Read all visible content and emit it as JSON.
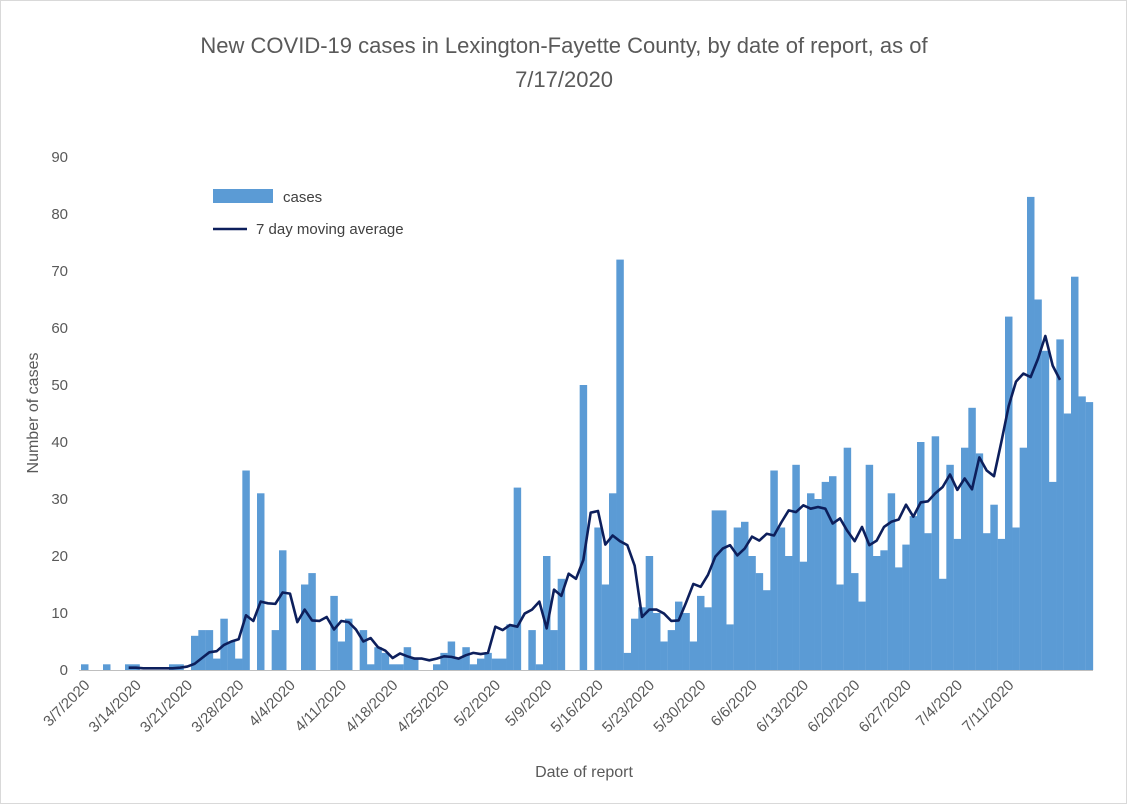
{
  "colors": {
    "bar": "#5b9bd5",
    "line": "#0d1f5c",
    "axis": "#bfbfbf",
    "text": "#595959"
  },
  "chart_data": {
    "type": "bar",
    "title_line1": "New COVID-19 cases in Lexington-Fayette County, by date of report, as of",
    "title_line2": "7/17/2020",
    "xlabel": "Date of report",
    "ylabel": "Number of cases",
    "ylim": [
      0,
      90
    ],
    "y_ticks": [
      "0",
      "10",
      "20",
      "30",
      "40",
      "50",
      "60",
      "70",
      "80",
      "90"
    ],
    "x_tick_labels": [
      "3/7/2020",
      "3/14/2020",
      "3/21/2020",
      "3/28/2020",
      "4/4/2020",
      "4/11/2020",
      "4/18/2020",
      "4/25/2020",
      "5/2/2020",
      "5/9/2020",
      "5/16/2020",
      "5/23/2020",
      "5/30/2020",
      "6/6/2020",
      "6/13/2020",
      "6/20/2020",
      "6/27/2020",
      "7/4/2020",
      "7/11/2020"
    ],
    "grid": false,
    "legend_position": "top-left",
    "x_start_date": "3/7/2020",
    "x_end_date": "7/17/2020",
    "series": [
      {
        "name": "cases",
        "kind": "bar",
        "values": [
          1,
          0,
          0,
          1,
          0,
          0,
          1,
          1,
          0,
          0,
          0,
          0,
          1,
          1,
          0,
          6,
          7,
          7,
          2,
          9,
          5,
          2,
          35,
          0,
          31,
          0,
          7,
          21,
          0,
          0,
          15,
          17,
          0,
          0,
          13,
          5,
          9,
          0,
          7,
          1,
          4,
          3,
          1,
          1,
          4,
          2,
          0,
          0,
          1,
          3,
          5,
          2,
          4,
          1,
          2,
          3,
          2,
          2,
          8,
          32,
          0,
          7,
          1,
          20,
          7,
          16,
          0,
          0,
          50,
          0,
          25,
          15,
          31,
          72,
          3,
          9,
          11,
          20,
          10,
          5,
          7,
          12,
          10,
          5,
          13,
          11,
          28,
          28,
          8,
          25,
          26,
          20,
          17,
          14,
          35,
          25,
          20,
          36,
          19,
          31,
          30,
          33,
          34,
          15,
          39,
          17,
          12,
          36,
          20,
          21,
          31,
          18,
          22,
          27,
          40,
          24,
          41,
          16,
          36,
          23,
          39,
          46,
          38,
          24,
          29,
          23,
          62,
          25,
          39,
          83,
          65,
          56,
          33,
          58,
          45,
          69,
          48,
          47
        ]
      },
      {
        "name": "7 day moving average",
        "kind": "line",
        "start_index": 6,
        "values": [
          0.4,
          0.4,
          0.3,
          0.3,
          0.3,
          0.3,
          0.3,
          0.4,
          0.6,
          1.1,
          2.1,
          3.1,
          3.3,
          4.4,
          5.0,
          5.4,
          9.6,
          8.6,
          12.0,
          11.7,
          11.6,
          13.6,
          13.4,
          8.4,
          10.6,
          8.7,
          8.6,
          9.3,
          7.1,
          8.6,
          8.4,
          7.1,
          5.0,
          5.6,
          4.0,
          3.4,
          2.1,
          2.9,
          2.4,
          2.0,
          2.0,
          1.7,
          2.0,
          2.4,
          2.3,
          2.0,
          2.6,
          3.0,
          2.8,
          3.0,
          7.6,
          7.0,
          7.9,
          7.6,
          9.9,
          10.6,
          12.0,
          7.3,
          14.1,
          13.0,
          16.9,
          16.0,
          19.3,
          27.6,
          27.9,
          22.0,
          23.6,
          22.6,
          21.9,
          18.3,
          9.3,
          10.6,
          10.6,
          9.9,
          8.6,
          8.7,
          11.8,
          15.1,
          14.6,
          16.7,
          19.9,
          21.3,
          21.9,
          20.1,
          21.3,
          23.4,
          22.7,
          23.9,
          23.6,
          25.9,
          28.0,
          27.7,
          28.9,
          28.3,
          28.6,
          28.3,
          25.7,
          26.6,
          24.4,
          22.6,
          25.1,
          21.9,
          22.7,
          25.1,
          26.0,
          26.4,
          29.0,
          26.9,
          29.4,
          29.6,
          31.0,
          32.1,
          34.3,
          31.6,
          33.6,
          31.7,
          37.3,
          35.0,
          34.0,
          40.0,
          46.3,
          50.6,
          52.0,
          51.4,
          54.6,
          58.6,
          53.4,
          50.9
        ]
      }
    ]
  }
}
